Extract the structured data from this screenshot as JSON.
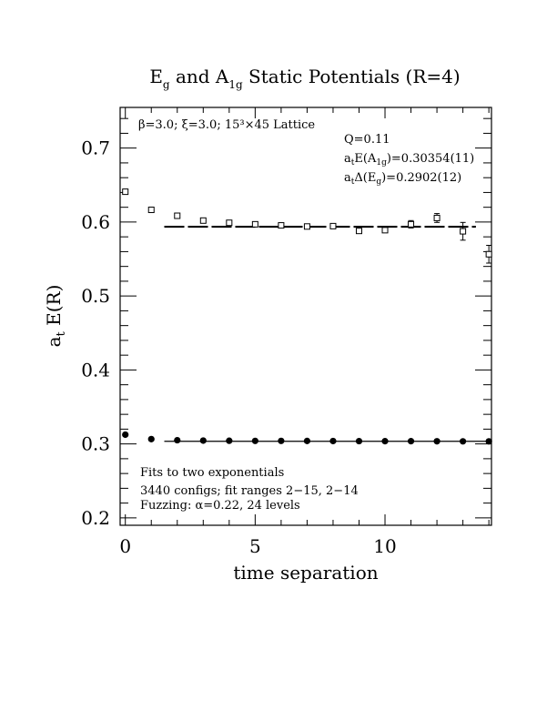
{
  "chart_data": {
    "type": "scatter",
    "title": {
      "main_a": "E",
      "sub_a": "g",
      "main_b": " and A",
      "sub_b": "1g",
      "main_c": " Static Potentials (R=4)"
    },
    "xlabel": "time separation",
    "ylabel": {
      "main": "a",
      "sub": "t",
      "rest": " E(R)"
    },
    "xlim": [
      -0.2,
      14.1
    ],
    "ylim": [
      0.19,
      0.755
    ],
    "xticks": [
      "0",
      "5",
      "10"
    ],
    "yticks": [
      "0.2",
      "0.3",
      "0.4",
      "0.5",
      "0.6",
      "0.7"
    ],
    "xtick_values": [
      0,
      5,
      10
    ],
    "ytick_values": [
      0.2,
      0.3,
      0.4,
      0.5,
      0.6,
      0.7
    ],
    "annotations": {
      "lattice": "β=3.0; ξ=3.0; 15³×45 Lattice",
      "q": "Q=0.11",
      "a1g_main": "a",
      "a1g_sub1": "t",
      "a1g_mid": "E(A",
      "a1g_sub2": "1g",
      "a1g_end": ")=0.30354(11)",
      "eg_main": "a",
      "eg_sub1": "t",
      "eg_mid": "Δ(E",
      "eg_sub2": "g",
      "eg_end": ")=0.2902(12)",
      "fits_line1": "Fits to two exponentials",
      "fits_line2": "3440 configs; fit ranges 2−15, 2−14",
      "fits_line3": "Fuzzing: α=0.22, 24 levels"
    },
    "series": [
      {
        "marker": "filled-circle",
        "x": [
          0,
          1,
          2,
          3,
          4,
          5,
          6,
          7,
          8,
          9,
          10,
          11,
          12,
          13,
          14
        ],
        "y": [
          0.3125,
          0.3065,
          0.305,
          0.3045,
          0.3043,
          0.3041,
          0.3041,
          0.304,
          0.3039,
          0.3038,
          0.3037,
          0.3037,
          0.3036,
          0.3035,
          0.3035
        ],
        "err": [
          0,
          0,
          0,
          0,
          0,
          0,
          0,
          0,
          0,
          0,
          0,
          0,
          0,
          0,
          0.002
        ]
      },
      {
        "marker": "open-square",
        "x": [
          0,
          1,
          2,
          3,
          4,
          5,
          6,
          7,
          8,
          9,
          10,
          11,
          12,
          13,
          14
        ],
        "y": [
          0.641,
          0.6165,
          0.6085,
          0.602,
          0.599,
          0.597,
          0.5955,
          0.594,
          0.5945,
          0.588,
          0.589,
          0.597,
          0.6055,
          0.5875,
          0.5565
        ],
        "err": [
          0.001,
          0.002,
          0.002,
          0.002,
          0.002,
          0.002,
          0.002,
          0.002,
          0.003,
          0.003,
          0.003,
          0.005,
          0.006,
          0.012,
          0.012
        ]
      }
    ],
    "fit_lines": [
      {
        "style": "solid",
        "x": [
          1.5,
          14.1
        ],
        "y": [
          0.30354,
          0.30354
        ]
      },
      {
        "style": "dashed",
        "x": [
          1.5,
          13.5
        ],
        "y": [
          0.5937,
          0.5937
        ]
      }
    ]
  }
}
